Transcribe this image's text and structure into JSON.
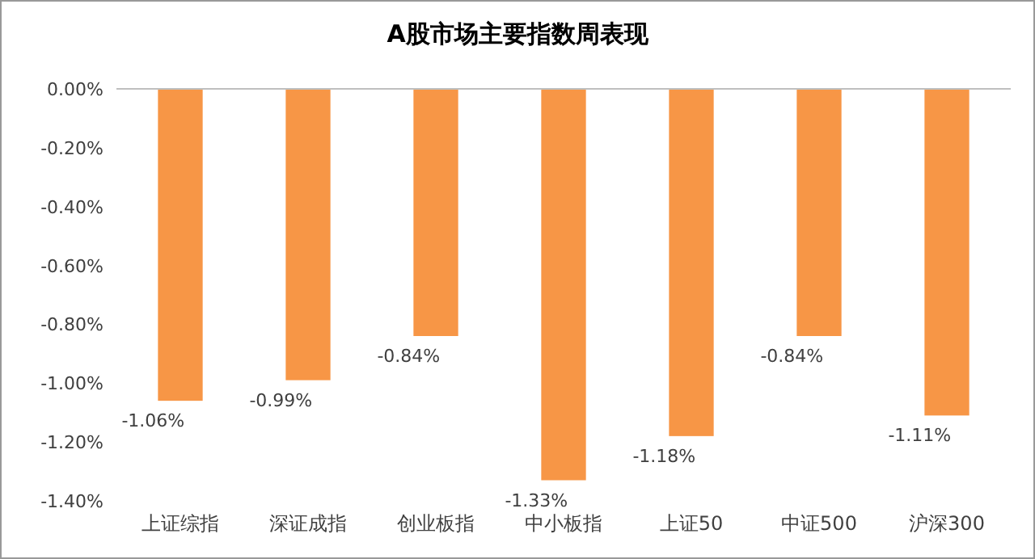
{
  "chart_data": {
    "type": "bar",
    "title": "A股市场主要指数周表现",
    "categories": [
      "上证综指",
      "深证成指",
      "创业板指",
      "中小板指",
      "上证50",
      "中证500",
      "沪深300"
    ],
    "values": [
      -1.06,
      -0.99,
      -0.84,
      -1.33,
      -1.18,
      -0.84,
      -1.11
    ],
    "value_labels": [
      "-1.06%",
      "-0.99%",
      "-0.84%",
      "-1.33%",
      "-1.18%",
      "-0.84%",
      "-1.11%"
    ],
    "color": "#f79646",
    "ylim": [
      -1.4,
      0
    ],
    "yticks": [
      {
        "value": 0,
        "label": "0.00%"
      },
      {
        "value": -0.2,
        "label": "-0.20%"
      },
      {
        "value": -0.4,
        "label": "-0.40%"
      },
      {
        "value": -0.6,
        "label": "-0.60%"
      },
      {
        "value": -0.8,
        "label": "-0.80%"
      },
      {
        "value": -1.0,
        "label": "-1.00%"
      },
      {
        "value": -1.2,
        "label": "-1.20%"
      },
      {
        "value": -1.4,
        "label": "-1.40%"
      }
    ],
    "grid": false
  }
}
